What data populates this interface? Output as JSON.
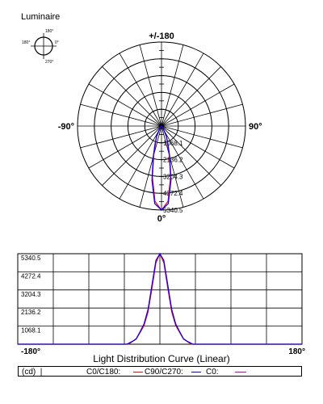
{
  "luminaire_label": "Luminaire",
  "inset": {
    "top": "180°",
    "left": "180°",
    "right": "0°",
    "bottom": "270°"
  },
  "colors": {
    "c0c180": "#ff0000",
    "c90c270": "#0000ff",
    "grid": "#000000"
  },
  "chart_data": [
    {
      "type": "polar",
      "angle_labels": {
        "top": "+/-180",
        "left": "-90°",
        "right": "90°",
        "bottom": "0°"
      },
      "radial_ticks": [
        "5340.5",
        "4272.4",
        "3204.3",
        "2136.2",
        "1068.1"
      ],
      "radial_max": 5340.5,
      "series": [
        {
          "name": "C0/C180",
          "values": [
            [
              -90,
              10
            ],
            [
              -60,
              30
            ],
            [
              -50,
              60
            ],
            [
              -40,
              100
            ],
            [
              -35,
              150
            ],
            [
              -30,
              300
            ],
            [
              -25,
              700
            ],
            [
              -20,
              1100
            ],
            [
              -15,
              1900
            ],
            [
              -10,
              3300
            ],
            [
              -5,
              4800
            ],
            [
              0,
              5340.5
            ],
            [
              5,
              4800
            ],
            [
              10,
              3300
            ],
            [
              15,
              1900
            ],
            [
              20,
              1100
            ],
            [
              25,
              700
            ],
            [
              30,
              300
            ],
            [
              35,
              150
            ],
            [
              40,
              100
            ],
            [
              50,
              60
            ],
            [
              60,
              30
            ],
            [
              90,
              10
            ]
          ]
        },
        {
          "name": "C90/C270",
          "values": [
            [
              -90,
              10
            ],
            [
              -60,
              30
            ],
            [
              -50,
              60
            ],
            [
              -40,
              110
            ],
            [
              -35,
              160
            ],
            [
              -30,
              320
            ],
            [
              -25,
              750
            ],
            [
              -20,
              1200
            ],
            [
              -15,
              2050
            ],
            [
              -10,
              3500
            ],
            [
              -5,
              4950
            ],
            [
              0,
              5340.5
            ],
            [
              5,
              4950
            ],
            [
              10,
              3500
            ],
            [
              15,
              2050
            ],
            [
              20,
              1200
            ],
            [
              25,
              750
            ],
            [
              30,
              320
            ],
            [
              35,
              160
            ],
            [
              40,
              110
            ],
            [
              50,
              60
            ],
            [
              60,
              30
            ],
            [
              90,
              10
            ]
          ]
        }
      ]
    },
    {
      "type": "line",
      "x_labels": [
        "-180°",
        "180°"
      ],
      "xlim": [
        -180,
        180
      ],
      "ylim": [
        0,
        5340.5
      ],
      "y_ticks": [
        "5340.5",
        "4272.4",
        "3204.3",
        "2136.2",
        "1068.1"
      ],
      "xlabel": "Light Distribution Curve (Linear)",
      "series": [
        {
          "name": "C0/C180",
          "points": [
            [
              -180,
              0
            ],
            [
              -40,
              0
            ],
            [
              -35,
              150
            ],
            [
              -30,
              300
            ],
            [
              -25,
              700
            ],
            [
              -20,
              1100
            ],
            [
              -15,
              1900
            ],
            [
              -10,
              3300
            ],
            [
              -5,
              4800
            ],
            [
              0,
              5340.5
            ],
            [
              5,
              4800
            ],
            [
              10,
              3300
            ],
            [
              15,
              1900
            ],
            [
              20,
              1100
            ],
            [
              25,
              700
            ],
            [
              30,
              300
            ],
            [
              35,
              150
            ],
            [
              40,
              0
            ],
            [
              180,
              0
            ]
          ]
        },
        {
          "name": "C90/C270",
          "points": [
            [
              -180,
              0
            ],
            [
              -42,
              0
            ],
            [
              -35,
              160
            ],
            [
              -30,
              320
            ],
            [
              -25,
              750
            ],
            [
              -20,
              1200
            ],
            [
              -15,
              2050
            ],
            [
              -10,
              3500
            ],
            [
              -5,
              4950
            ],
            [
              0,
              5340.5
            ],
            [
              5,
              4950
            ],
            [
              10,
              3500
            ],
            [
              15,
              2050
            ],
            [
              20,
              1200
            ],
            [
              25,
              750
            ],
            [
              30,
              320
            ],
            [
              35,
              160
            ],
            [
              42,
              0
            ],
            [
              180,
              0
            ]
          ]
        }
      ]
    }
  ],
  "legend": {
    "unit": "(cd)  |",
    "c0c180": "C0/C180:",
    "c90c270": "C90/C270:",
    "c0": "C0:"
  }
}
